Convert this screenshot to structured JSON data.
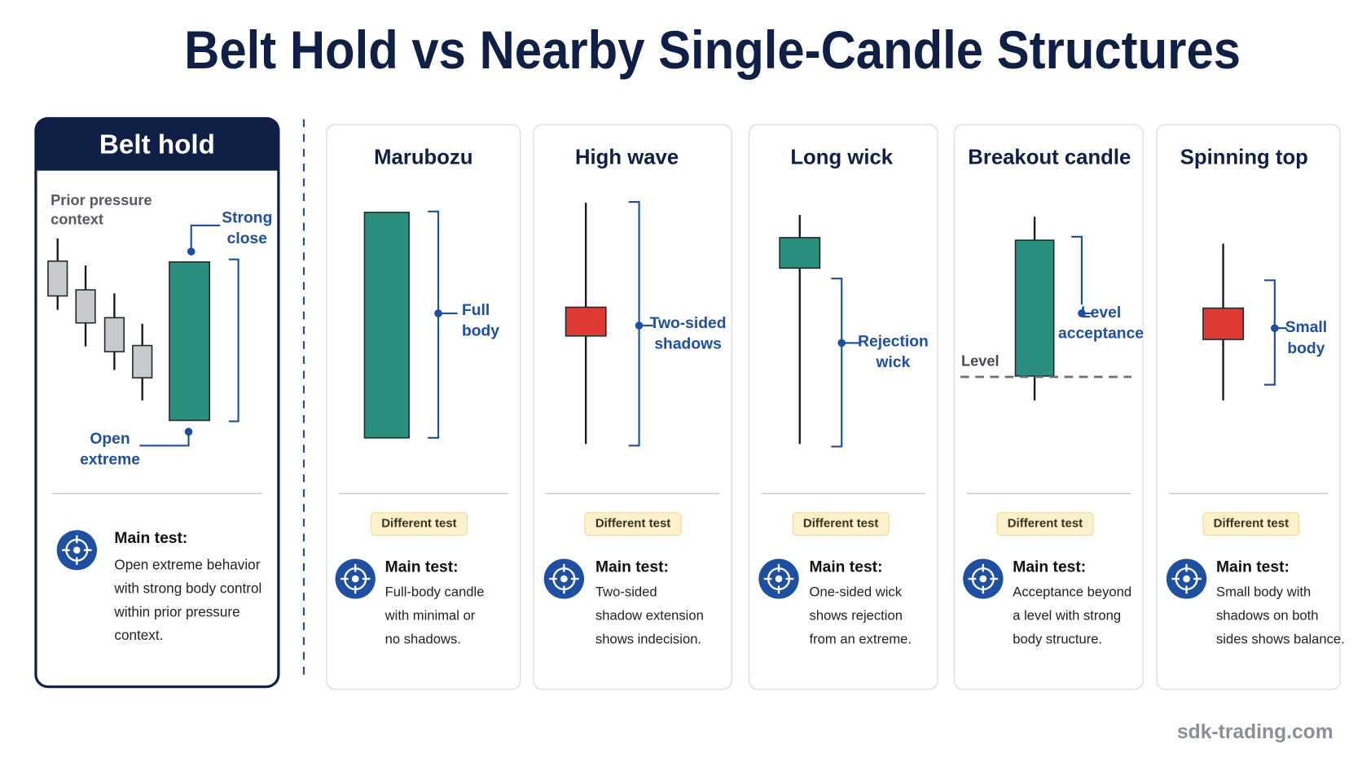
{
  "title": "Belt Hold vs Nearby Single-Candle Structures",
  "featured": {
    "title": "Belt hold",
    "context": [
      "Prior pressure",
      "context"
    ],
    "close_label": [
      "Strong",
      "close"
    ],
    "open_label": [
      "Open",
      "extreme"
    ],
    "main_test": "Main test:",
    "description": [
      "Open extreme behavior",
      "with strong body control",
      "within prior pressure",
      "context."
    ]
  },
  "cards": [
    {
      "title": "Marubozu",
      "labels": [
        "Full",
        "body"
      ],
      "badge": "Different test",
      "main_test": "Main test:",
      "description": [
        "Full-body candle",
        "with minimal or",
        "no shadows."
      ]
    },
    {
      "title": "High wave",
      "labels": [
        "Two-sided",
        "shadows"
      ],
      "badge": "Different test",
      "main_test": "Main test:",
      "description": [
        "Two-sided",
        "shadow extension",
        "shows indecision."
      ]
    },
    {
      "title": "Long wick",
      "labels": [
        "Rejection",
        "wick"
      ],
      "badge": "Different test",
      "main_test": "Main test:",
      "description": [
        "One-sided wick",
        "shows rejection",
        "from an extreme."
      ]
    },
    {
      "title": "Breakout candle",
      "labels": [
        "Level",
        "acceptance"
      ],
      "level_label": "Level",
      "badge": "Different test",
      "main_test": "Main test:",
      "description": [
        "Acceptance beyond",
        "a level with strong",
        "body structure."
      ]
    },
    {
      "title": "Spinning top",
      "labels": [
        "Small",
        "body"
      ],
      "badge": "Different test",
      "main_test": "Main test:",
      "description": [
        "Small body with",
        "shadows on both",
        "sides shows balance."
      ]
    }
  ],
  "watermark": "sdk-trading.com"
}
